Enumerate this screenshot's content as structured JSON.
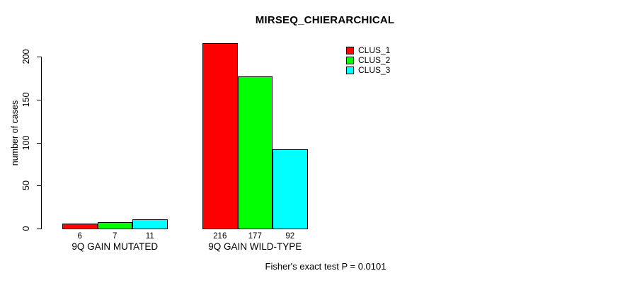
{
  "chart_data": {
    "type": "bar",
    "title": "MIRSEQ_CHIERARCHICAL",
    "xlabel": "",
    "ylabel": "number of cases",
    "categories": [
      "9Q GAIN MUTATED",
      "9Q GAIN WILD-TYPE"
    ],
    "series": [
      {
        "name": "CLUS_1",
        "color": "#ff0000",
        "values": [
          6,
          216
        ]
      },
      {
        "name": "CLUS_2",
        "color": "#00ff00",
        "values": [
          7,
          177
        ]
      },
      {
        "name": "CLUS_3",
        "color": "#00ffff",
        "values": [
          11,
          92
        ]
      }
    ],
    "bar_value_labels": [
      [
        "6",
        "7",
        "11"
      ],
      [
        "216",
        "177",
        "92"
      ]
    ],
    "yticks": [
      "0",
      "50",
      "100",
      "150",
      "200"
    ],
    "ylim": [
      0,
      220
    ],
    "grid": false,
    "legend_position": "top-right",
    "annotation": "Fisher's exact test P = 0.0101",
    "text_color": "#000000",
    "background_color": "#ffffff"
  }
}
